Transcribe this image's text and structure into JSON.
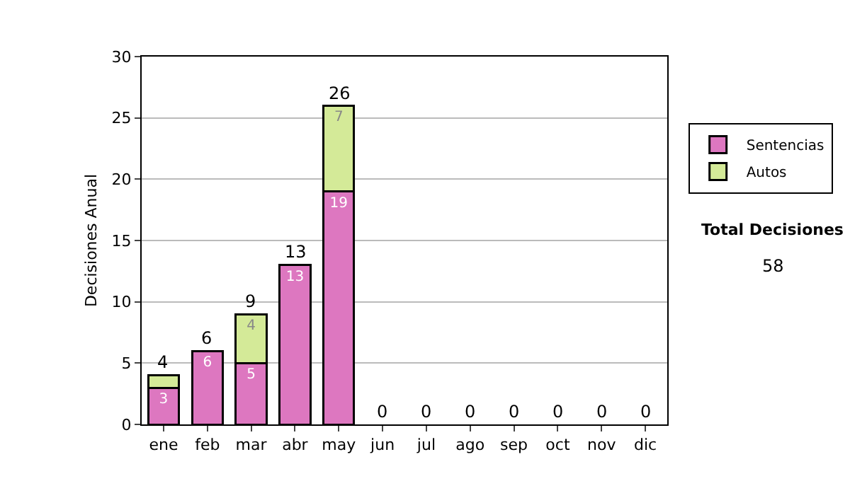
{
  "chart_data": {
    "type": "bar",
    "stacked": true,
    "ylabel": "Decisiones Anual",
    "categories": [
      "ene",
      "feb",
      "mar",
      "abr",
      "may",
      "jun",
      "jul",
      "ago",
      "sep",
      "oct",
      "nov",
      "dic"
    ],
    "series": [
      {
        "name": "Sentencias",
        "color": "#dd77c0",
        "values": [
          3,
          6,
          5,
          13,
          19,
          0,
          0,
          0,
          0,
          0,
          0,
          0
        ],
        "value_labels": [
          "3",
          "6",
          "5",
          "13",
          "19",
          null,
          null,
          null,
          null,
          null,
          null,
          null
        ]
      },
      {
        "name": "Autos",
        "color": "#d4ea98",
        "values": [
          1,
          0,
          4,
          0,
          7,
          0,
          0,
          0,
          0,
          0,
          0,
          0
        ],
        "value_labels": [
          null,
          null,
          "4",
          null,
          "7",
          null,
          null,
          null,
          null,
          null,
          null,
          null
        ]
      }
    ],
    "totals": [
      "4",
      "6",
      "9",
      "13",
      "26",
      "0",
      "0",
      "0",
      "0",
      "0",
      "0",
      "0"
    ],
    "ylim": [
      0,
      30
    ],
    "yticks": [
      0,
      5,
      10,
      15,
      20,
      25,
      30
    ],
    "grid": "y",
    "legend": "right",
    "annotations": [
      "Total Decisiones",
      "58"
    ]
  }
}
